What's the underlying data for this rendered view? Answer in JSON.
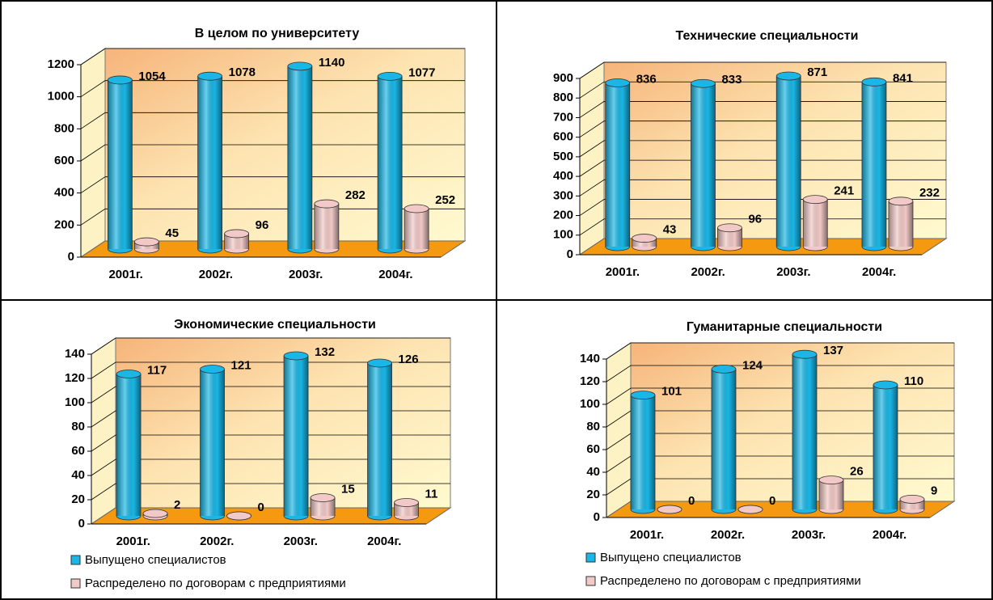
{
  "chart_data": [
    {
      "type": "bar",
      "title": "В целом по университету",
      "categories": [
        "2001г.",
        "2002г.",
        "2003г.",
        "2004г."
      ],
      "series": [
        {
          "color": "#19b6e6",
          "values": [
            1054,
            1078,
            1140,
            1077
          ]
        },
        {
          "color": "#f2c9c6",
          "values": [
            45,
            96,
            282,
            252
          ]
        }
      ],
      "ylim": [
        0,
        1200
      ],
      "yticks": [
        0,
        200,
        400,
        600,
        800,
        1000,
        1200
      ],
      "grid": true
    },
    {
      "type": "bar",
      "title": "Технические специальности",
      "categories": [
        "2001г.",
        "2002г.",
        "2003г.",
        "2004г."
      ],
      "series": [
        {
          "color": "#19b6e6",
          "values": [
            836,
            833,
            871,
            841
          ]
        },
        {
          "color": "#f2c9c6",
          "values": [
            43,
            96,
            241,
            232
          ]
        }
      ],
      "ylim": [
        0,
        900
      ],
      "yticks": [
        0,
        100,
        200,
        300,
        400,
        500,
        600,
        700,
        800,
        900
      ],
      "grid": true
    },
    {
      "type": "bar",
      "title": "Экономические специальности",
      "categories": [
        "2001г.",
        "2002г.",
        "2003г.",
        "2004г."
      ],
      "series": [
        {
          "name": "Выпущено специалистов",
          "color": "#19b6e6",
          "values": [
            117,
            121,
            132,
            126
          ]
        },
        {
          "name": "Распределено по договорам с предприятиями",
          "color": "#f2c9c6",
          "values": [
            2,
            0,
            15,
            11
          ]
        }
      ],
      "ylim": [
        0,
        140
      ],
      "yticks": [
        0,
        20,
        40,
        60,
        80,
        100,
        120,
        140
      ],
      "grid": true,
      "legend": "bottom"
    },
    {
      "type": "bar",
      "title": "Гуманитарные специальности",
      "categories": [
        "2001г.",
        "2002г.",
        "2003г.",
        "2004г."
      ],
      "series": [
        {
          "name": "Выпущено специалистов",
          "color": "#19b6e6",
          "values": [
            101,
            124,
            137,
            110
          ]
        },
        {
          "name": "Распределено по договорам с предприятиями",
          "color": "#f2c9c6",
          "values": [
            0,
            0,
            26,
            9
          ]
        }
      ],
      "ylim": [
        0,
        140
      ],
      "yticks": [
        0,
        20,
        40,
        60,
        80,
        100,
        120,
        140
      ],
      "grid": true,
      "legend": "bottom"
    }
  ]
}
